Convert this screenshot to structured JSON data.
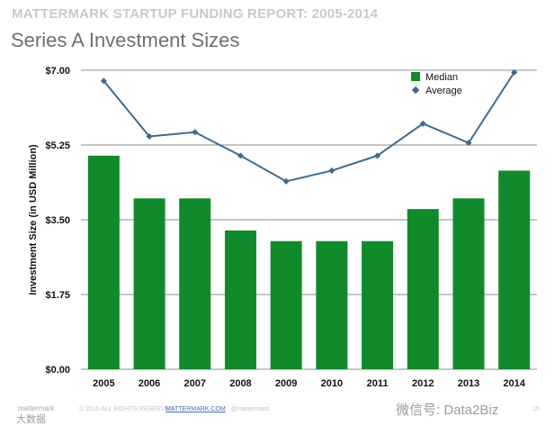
{
  "header": {
    "report_title": "MATTERMARK STARTUP FUNDING REPORT: 2005-2014",
    "slide_title": "Series A Investment Sizes"
  },
  "chart_data": {
    "type": "bar",
    "title": "Series A Investment Sizes",
    "xlabel": "",
    "ylabel": "Investment Size (in USD Million)",
    "ylim": [
      0,
      7
    ],
    "y_ticks": [
      0,
      1.75,
      3.5,
      5.25,
      7
    ],
    "y_tick_labels": [
      "$0.00",
      "$1.75",
      "$3.50",
      "$5.25",
      "$7.00"
    ],
    "grid": true,
    "legend_position": "top-right",
    "categories": [
      "2005",
      "2006",
      "2007",
      "2008",
      "2009",
      "2010",
      "2011",
      "2012",
      "2013",
      "2014"
    ],
    "series": [
      {
        "name": "Median",
        "type": "bar",
        "color": "#118a2b",
        "values": [
          5.0,
          4.0,
          4.0,
          3.25,
          3.0,
          3.0,
          3.0,
          3.75,
          4.0,
          4.65
        ]
      },
      {
        "name": "Average",
        "type": "line",
        "color": "#3f6b8e",
        "values": [
          6.75,
          5.45,
          5.55,
          5.0,
          4.4,
          4.65,
          5.0,
          5.75,
          5.3,
          6.95
        ]
      }
    ]
  },
  "footer": {
    "logo_text": "mattermark",
    "rights": "© 2015 ALL RIGHTS RESERVED",
    "site": "MATTERMARK.COM",
    "handle": "@mattermark",
    "page_number": "16",
    "watermark_bottom": "大数据",
    "watermark_right": "微信号: Data2Biz"
  },
  "colors": {
    "bar": "#118a2b",
    "line": "#3f6b8e",
    "grid": "#8e8e8e",
    "header": "#c8c8c8",
    "title": "#6f6f6f"
  }
}
